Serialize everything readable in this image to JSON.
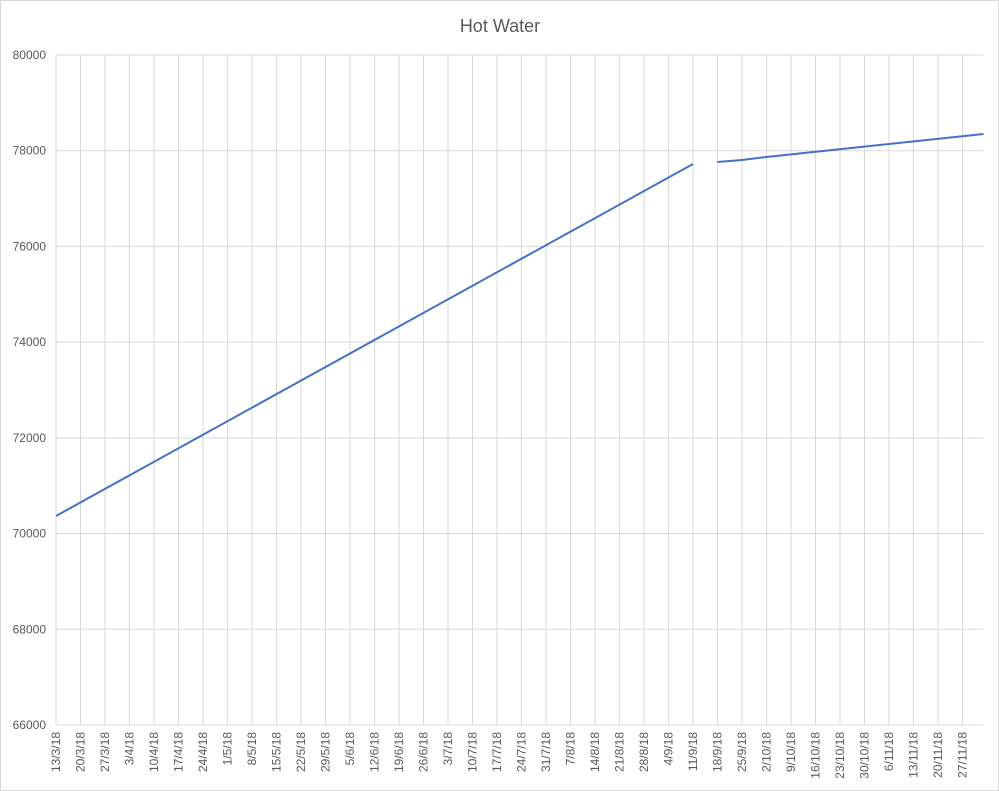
{
  "chart_data": {
    "type": "line",
    "title": "Hot Water",
    "x": [
      "13/3/18",
      "11/9/18",
      null,
      "18/9/18",
      "25/9/18",
      "2/10/18",
      "3/12/18"
    ],
    "series": [
      {
        "color": "#4472c4",
        "values": [
          70368,
          77723,
          null,
          77764,
          77806,
          77869,
          78350
        ]
      }
    ],
    "xlim": [
      "13/3/18",
      "3/12/18"
    ],
    "xticks": [
      "13/3/18",
      "20/3/18",
      "27/3/18",
      "3/4/18",
      "10/4/18",
      "17/4/18",
      "24/4/18",
      "1/5/18",
      "8/5/18",
      "15/5/18",
      "22/5/18",
      "29/5/18",
      "5/6/18",
      "12/6/18",
      "19/6/18",
      "26/6/18",
      "3/7/18",
      "10/7/18",
      "17/7/18",
      "24/7/18",
      "31/7/18",
      "7/8/18",
      "14/8/18",
      "21/8/18",
      "28/8/18",
      "4/9/18",
      "11/9/18",
      "18/9/18",
      "25/9/18",
      "2/10/18",
      "9/10/18",
      "16/10/18",
      "23/10/18",
      "30/10/18",
      "6/11/18",
      "13/11/18",
      "20/11/18",
      "27/11/18"
    ],
    "ylim": [
      66000,
      80000
    ],
    "yticks": [
      66000,
      68000,
      70000,
      72000,
      74000,
      76000,
      78000,
      80000
    ],
    "grid": true
  }
}
